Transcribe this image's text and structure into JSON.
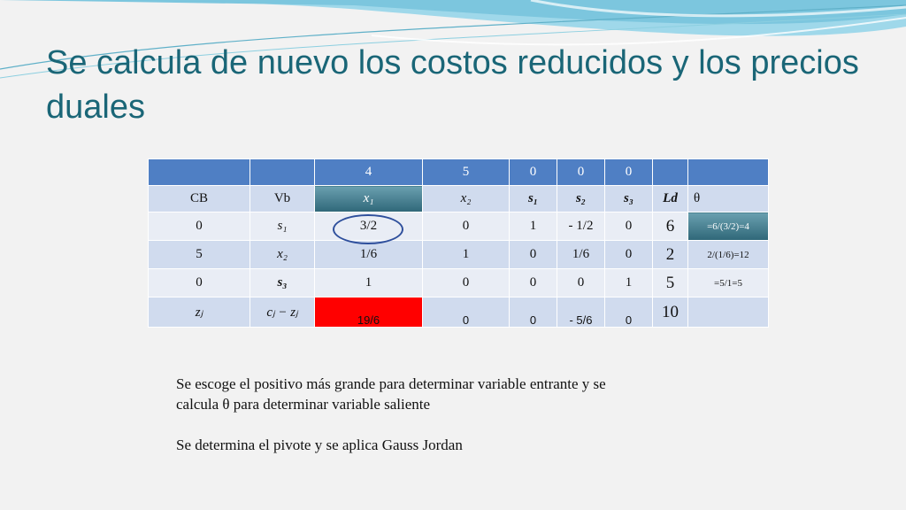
{
  "slide": {
    "title": "Se calcula de nuevo los costos reducidos y los precios duales",
    "notes": {
      "line1": "Se escoge el positivo más grande para determinar variable entrante y se",
      "line2": "calcula θ para determinar variable saliente",
      "line3": "Se determina el pivote y se aplica Gauss Jordan"
    }
  },
  "table": {
    "cost_row": [
      "",
      "",
      "4",
      "5",
      "0",
      "0",
      "0",
      "",
      ""
    ],
    "header_row": [
      "CB",
      "Vb",
      "x₁",
      "x₂",
      "s₁",
      "s₂",
      "s₃",
      "Ld",
      "θ"
    ],
    "rows": [
      [
        "0",
        "s₁",
        "3/2",
        "0",
        "1",
        "-   1/2",
        "0",
        "6",
        "=6/(3/2)=4"
      ],
      [
        "5",
        "x₂",
        "1/6",
        "1",
        "0",
        "1/6",
        "0",
        "2",
        "2/(1/6)=12"
      ],
      [
        "0",
        "s₃",
        "1",
        "0",
        "0",
        "0",
        "1",
        "5",
        "=5/1=5"
      ]
    ],
    "z_row": [
      "zⱼ",
      "cⱼ − zⱼ",
      "19/6",
      "0",
      "0",
      "-  5/6",
      "0",
      "10",
      ""
    ]
  },
  "colors": {
    "title": "#1a6677",
    "header_fill": "#4f7fc4",
    "row_fill_dark": "#d0dbee",
    "row_fill_light": "#e9edf5",
    "highlight": "#3f7a8c",
    "entering_cell": "#ff0000",
    "pivot_circle": "#2e4f9c"
  }
}
